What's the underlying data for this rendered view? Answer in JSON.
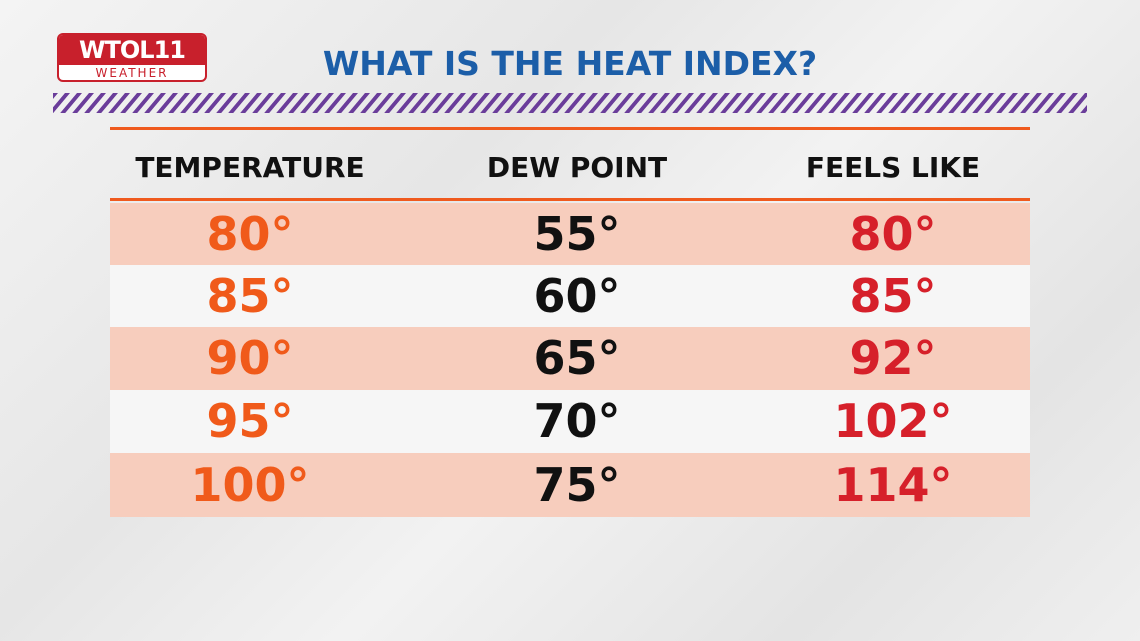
{
  "logo": {
    "name": "WTOL11",
    "subtitle": "WEATHER"
  },
  "title": "WHAT IS THE HEAT INDEX?",
  "table": {
    "columns": [
      "TEMPERATURE",
      "DEW POINT",
      "FEELS LIKE"
    ],
    "rows": [
      [
        "80°",
        "55°",
        "80°"
      ],
      [
        "85°",
        "60°",
        "85°"
      ],
      [
        "90°",
        "65°",
        "92°"
      ],
      [
        "95°",
        "70°",
        "102°"
      ],
      [
        "100°",
        "75°",
        "114°"
      ]
    ]
  }
}
